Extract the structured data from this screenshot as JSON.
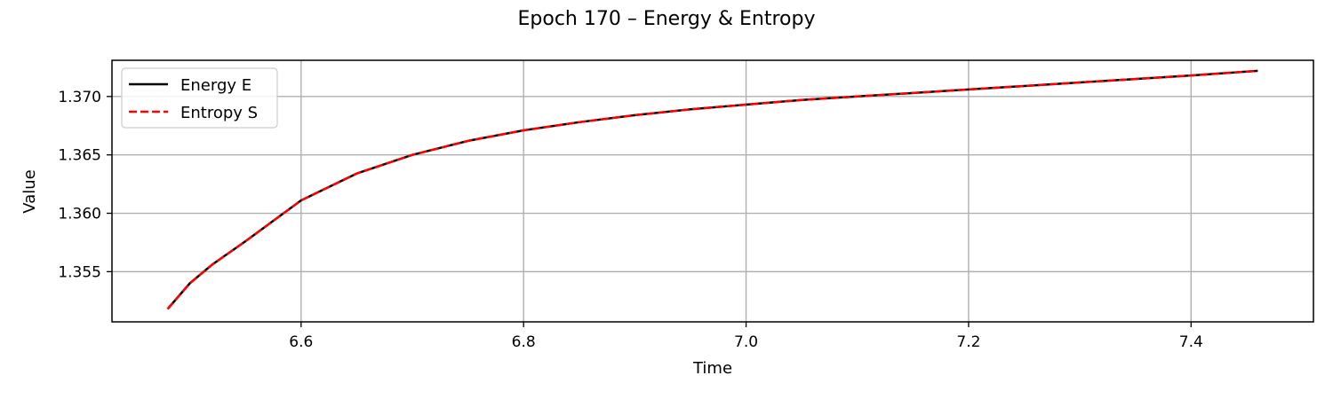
{
  "chart_data": {
    "type": "line",
    "title": "Epoch 170 – Energy & Entropy",
    "xlabel": "Time",
    "ylabel": "Value",
    "xlim": [
      6.43,
      7.51
    ],
    "ylim": [
      1.3507,
      1.3731
    ],
    "grid": true,
    "legend_position": "top-left",
    "xticks": [
      6.6,
      6.8,
      7.0,
      7.2,
      7.4
    ],
    "xtick_labels": [
      "6.6",
      "6.8",
      "7.0",
      "7.2",
      "7.4"
    ],
    "yticks": [
      1.355,
      1.36,
      1.365,
      1.37
    ],
    "ytick_labels": [
      "1.355",
      "1.360",
      "1.365",
      "1.370"
    ],
    "x": [
      6.48,
      6.5,
      6.52,
      6.55,
      6.6,
      6.65,
      6.7,
      6.75,
      6.8,
      6.85,
      6.9,
      6.95,
      7.0,
      7.05,
      7.1,
      7.15,
      7.2,
      7.25,
      7.3,
      7.35,
      7.4,
      7.46
    ],
    "series": [
      {
        "name": "Energy E",
        "color": "#000000",
        "style": "solid",
        "values": [
          1.3518,
          1.354,
          1.3556,
          1.3576,
          1.3611,
          1.3634,
          1.365,
          1.3662,
          1.3671,
          1.3678,
          1.3684,
          1.3689,
          1.3693,
          1.3697,
          1.37,
          1.3703,
          1.3706,
          1.3709,
          1.3712,
          1.3715,
          1.3718,
          1.3722
        ]
      },
      {
        "name": "Entropy S",
        "color": "#ff0000",
        "style": "dashed",
        "values": [
          1.3518,
          1.354,
          1.3556,
          1.3576,
          1.3611,
          1.3634,
          1.365,
          1.3662,
          1.3671,
          1.3678,
          1.3684,
          1.3689,
          1.3693,
          1.3697,
          1.37,
          1.3703,
          1.3706,
          1.3709,
          1.3712,
          1.3715,
          1.3718,
          1.3722
        ]
      }
    ]
  }
}
